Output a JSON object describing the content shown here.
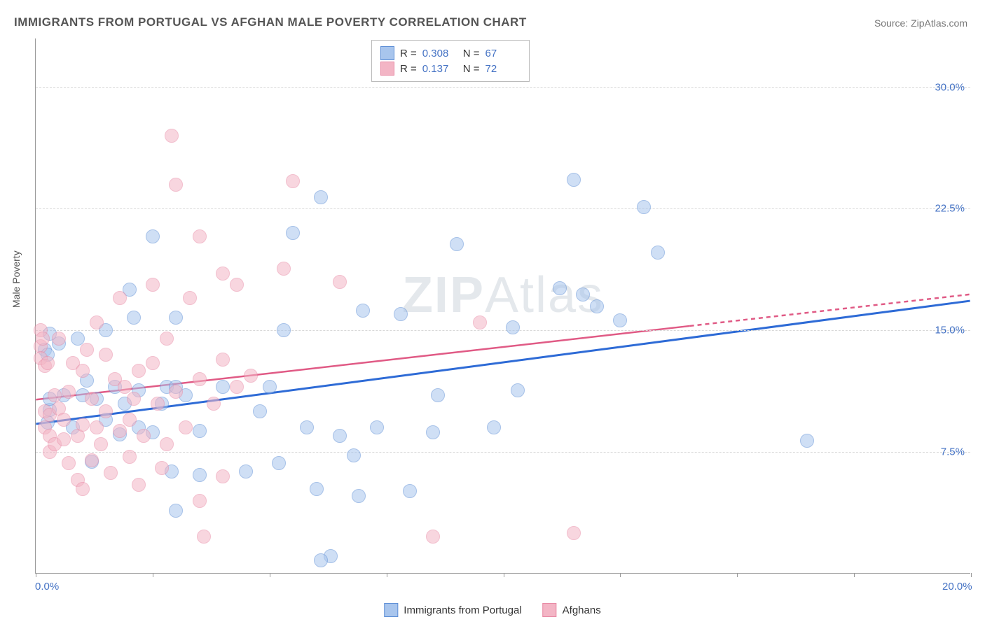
{
  "title": "IMMIGRANTS FROM PORTUGAL VS AFGHAN MALE POVERTY CORRELATION CHART",
  "source": "Source: ZipAtlas.com",
  "watermark_a": "ZIP",
  "watermark_b": "Atlas",
  "ylabel": "Male Poverty",
  "chart": {
    "type": "scatter",
    "xlim": [
      0,
      20
    ],
    "ylim": [
      0,
      33
    ],
    "background_color": "#ffffff",
    "grid_color": "#d8d8d8",
    "grid_style": "dashed",
    "border_color": "#999999",
    "y_gridlines": [
      7.5,
      15.0,
      22.5,
      30.0
    ],
    "y_tick_labels": [
      "7.5%",
      "15.0%",
      "22.5%",
      "30.0%"
    ],
    "x_ticks": [
      0,
      2.5,
      5,
      7.5,
      10,
      12.5,
      15,
      17.5,
      20
    ],
    "x_tick_labels_shown": {
      "0": "0.0%",
      "20": "20.0%"
    },
    "point_radius": 10,
    "point_opacity": 0.55,
    "series": [
      {
        "name": "Immigrants from Portugal",
        "color_fill": "#a8c5ed",
        "color_stroke": "#5e8fd6",
        "R": "0.308",
        "N": "67",
        "trend": {
          "x1": 0,
          "y1": 9.2,
          "x2": 20,
          "y2": 16.8,
          "color": "#2e6bd6",
          "width": 3,
          "solid_until_x": 20
        },
        "points": [
          [
            0.2,
            13.8
          ],
          [
            0.3,
            14.8
          ],
          [
            0.3,
            10.1
          ],
          [
            0.3,
            10.8
          ],
          [
            0.25,
            9.3
          ],
          [
            0.25,
            13.5
          ],
          [
            0.5,
            14.2
          ],
          [
            0.6,
            11.0
          ],
          [
            0.8,
            9.0
          ],
          [
            0.9,
            14.5
          ],
          [
            1.0,
            11.0
          ],
          [
            1.1,
            11.9
          ],
          [
            1.2,
            6.9
          ],
          [
            1.3,
            10.8
          ],
          [
            1.5,
            15.0
          ],
          [
            1.5,
            9.5
          ],
          [
            1.7,
            11.5
          ],
          [
            1.8,
            8.6
          ],
          [
            1.9,
            10.5
          ],
          [
            2.0,
            17.5
          ],
          [
            2.1,
            15.8
          ],
          [
            2.2,
            11.3
          ],
          [
            2.2,
            9.0
          ],
          [
            2.5,
            8.7
          ],
          [
            2.5,
            20.8
          ],
          [
            2.7,
            10.5
          ],
          [
            2.8,
            11.5
          ],
          [
            2.9,
            6.3
          ],
          [
            3.0,
            15.8
          ],
          [
            3.0,
            11.5
          ],
          [
            3.0,
            3.9
          ],
          [
            3.2,
            11.0
          ],
          [
            3.5,
            6.1
          ],
          [
            3.5,
            8.8
          ],
          [
            4.0,
            11.5
          ],
          [
            4.5,
            6.3
          ],
          [
            4.8,
            10.0
          ],
          [
            5.0,
            11.5
          ],
          [
            5.2,
            6.8
          ],
          [
            5.3,
            15.0
          ],
          [
            5.5,
            21.0
          ],
          [
            5.8,
            9.0
          ],
          [
            6.0,
            5.2
          ],
          [
            6.1,
            23.2
          ],
          [
            6.3,
            1.1
          ],
          [
            6.5,
            8.5
          ],
          [
            6.8,
            7.3
          ],
          [
            6.9,
            4.8
          ],
          [
            7.0,
            16.2
          ],
          [
            7.3,
            9.0
          ],
          [
            7.8,
            16.0
          ],
          [
            8.0,
            5.1
          ],
          [
            8.5,
            8.7
          ],
          [
            8.6,
            11.0
          ],
          [
            9.0,
            20.3
          ],
          [
            9.8,
            9.0
          ],
          [
            10.2,
            15.2
          ],
          [
            10.3,
            11.3
          ],
          [
            11.2,
            17.6
          ],
          [
            11.5,
            24.3
          ],
          [
            11.7,
            17.2
          ],
          [
            12.0,
            16.5
          ],
          [
            12.5,
            15.6
          ],
          [
            13.0,
            22.6
          ],
          [
            13.3,
            19.8
          ],
          [
            16.5,
            8.2
          ],
          [
            6.1,
            0.8
          ]
        ]
      },
      {
        "name": "Afghans",
        "color_fill": "#f3b5c5",
        "color_stroke": "#e88aa5",
        "R": "0.137",
        "N": "72",
        "trend": {
          "x1": 0,
          "y1": 10.7,
          "x2": 20,
          "y2": 17.2,
          "color": "#e05a85",
          "width": 2.5,
          "solid_until_x": 14
        },
        "points": [
          [
            0.1,
            14.0
          ],
          [
            0.1,
            13.3
          ],
          [
            0.1,
            15.0
          ],
          [
            0.15,
            14.5
          ],
          [
            0.2,
            10.0
          ],
          [
            0.2,
            9.0
          ],
          [
            0.2,
            12.8
          ],
          [
            0.25,
            13.0
          ],
          [
            0.3,
            8.5
          ],
          [
            0.3,
            9.8
          ],
          [
            0.3,
            7.5
          ],
          [
            0.4,
            11.0
          ],
          [
            0.4,
            8.0
          ],
          [
            0.5,
            10.2
          ],
          [
            0.5,
            14.5
          ],
          [
            0.6,
            9.5
          ],
          [
            0.6,
            8.3
          ],
          [
            0.7,
            11.2
          ],
          [
            0.7,
            6.8
          ],
          [
            0.8,
            13.0
          ],
          [
            0.9,
            8.5
          ],
          [
            0.9,
            5.8
          ],
          [
            1.0,
            12.5
          ],
          [
            1.0,
            9.2
          ],
          [
            1.0,
            5.2
          ],
          [
            1.1,
            13.8
          ],
          [
            1.2,
            10.8
          ],
          [
            1.2,
            7.0
          ],
          [
            1.3,
            15.5
          ],
          [
            1.3,
            9.0
          ],
          [
            1.4,
            8.0
          ],
          [
            1.5,
            10.0
          ],
          [
            1.5,
            13.5
          ],
          [
            1.6,
            6.2
          ],
          [
            1.7,
            12.0
          ],
          [
            1.8,
            8.8
          ],
          [
            1.8,
            17.0
          ],
          [
            1.9,
            11.5
          ],
          [
            2.0,
            9.5
          ],
          [
            2.0,
            7.2
          ],
          [
            2.1,
            10.8
          ],
          [
            2.2,
            12.5
          ],
          [
            2.2,
            5.5
          ],
          [
            2.3,
            8.5
          ],
          [
            2.5,
            17.8
          ],
          [
            2.5,
            13.0
          ],
          [
            2.6,
            10.5
          ],
          [
            2.7,
            6.5
          ],
          [
            2.8,
            14.5
          ],
          [
            2.8,
            8.0
          ],
          [
            2.9,
            27.0
          ],
          [
            3.0,
            11.2
          ],
          [
            3.0,
            24.0
          ],
          [
            3.2,
            9.0
          ],
          [
            3.3,
            17.0
          ],
          [
            3.5,
            20.8
          ],
          [
            3.5,
            12.0
          ],
          [
            3.5,
            4.5
          ],
          [
            3.6,
            2.3
          ],
          [
            3.8,
            10.5
          ],
          [
            4.0,
            18.5
          ],
          [
            4.0,
            13.2
          ],
          [
            4.0,
            6.0
          ],
          [
            4.3,
            17.8
          ],
          [
            4.3,
            11.5
          ],
          [
            4.6,
            12.2
          ],
          [
            5.3,
            18.8
          ],
          [
            5.5,
            24.2
          ],
          [
            6.5,
            18.0
          ],
          [
            8.5,
            2.3
          ],
          [
            9.5,
            15.5
          ],
          [
            11.5,
            2.5
          ]
        ]
      }
    ],
    "top_legend": {
      "rows": [
        {
          "swatch_fill": "#a8c5ed",
          "swatch_stroke": "#5e8fd6",
          "r_lbl": "R =",
          "r_val": "0.308",
          "n_lbl": "N =",
          "n_val": "67"
        },
        {
          "swatch_fill": "#f3b5c5",
          "swatch_stroke": "#e88aa5",
          "r_lbl": "R =",
          "r_val": "0.137",
          "n_lbl": "N =",
          "n_val": "72"
        }
      ]
    },
    "bottom_legend": [
      {
        "swatch_fill": "#a8c5ed",
        "swatch_stroke": "#5e8fd6",
        "label": "Immigrants from Portugal"
      },
      {
        "swatch_fill": "#f3b5c5",
        "swatch_stroke": "#e88aa5",
        "label": "Afghans"
      }
    ]
  }
}
